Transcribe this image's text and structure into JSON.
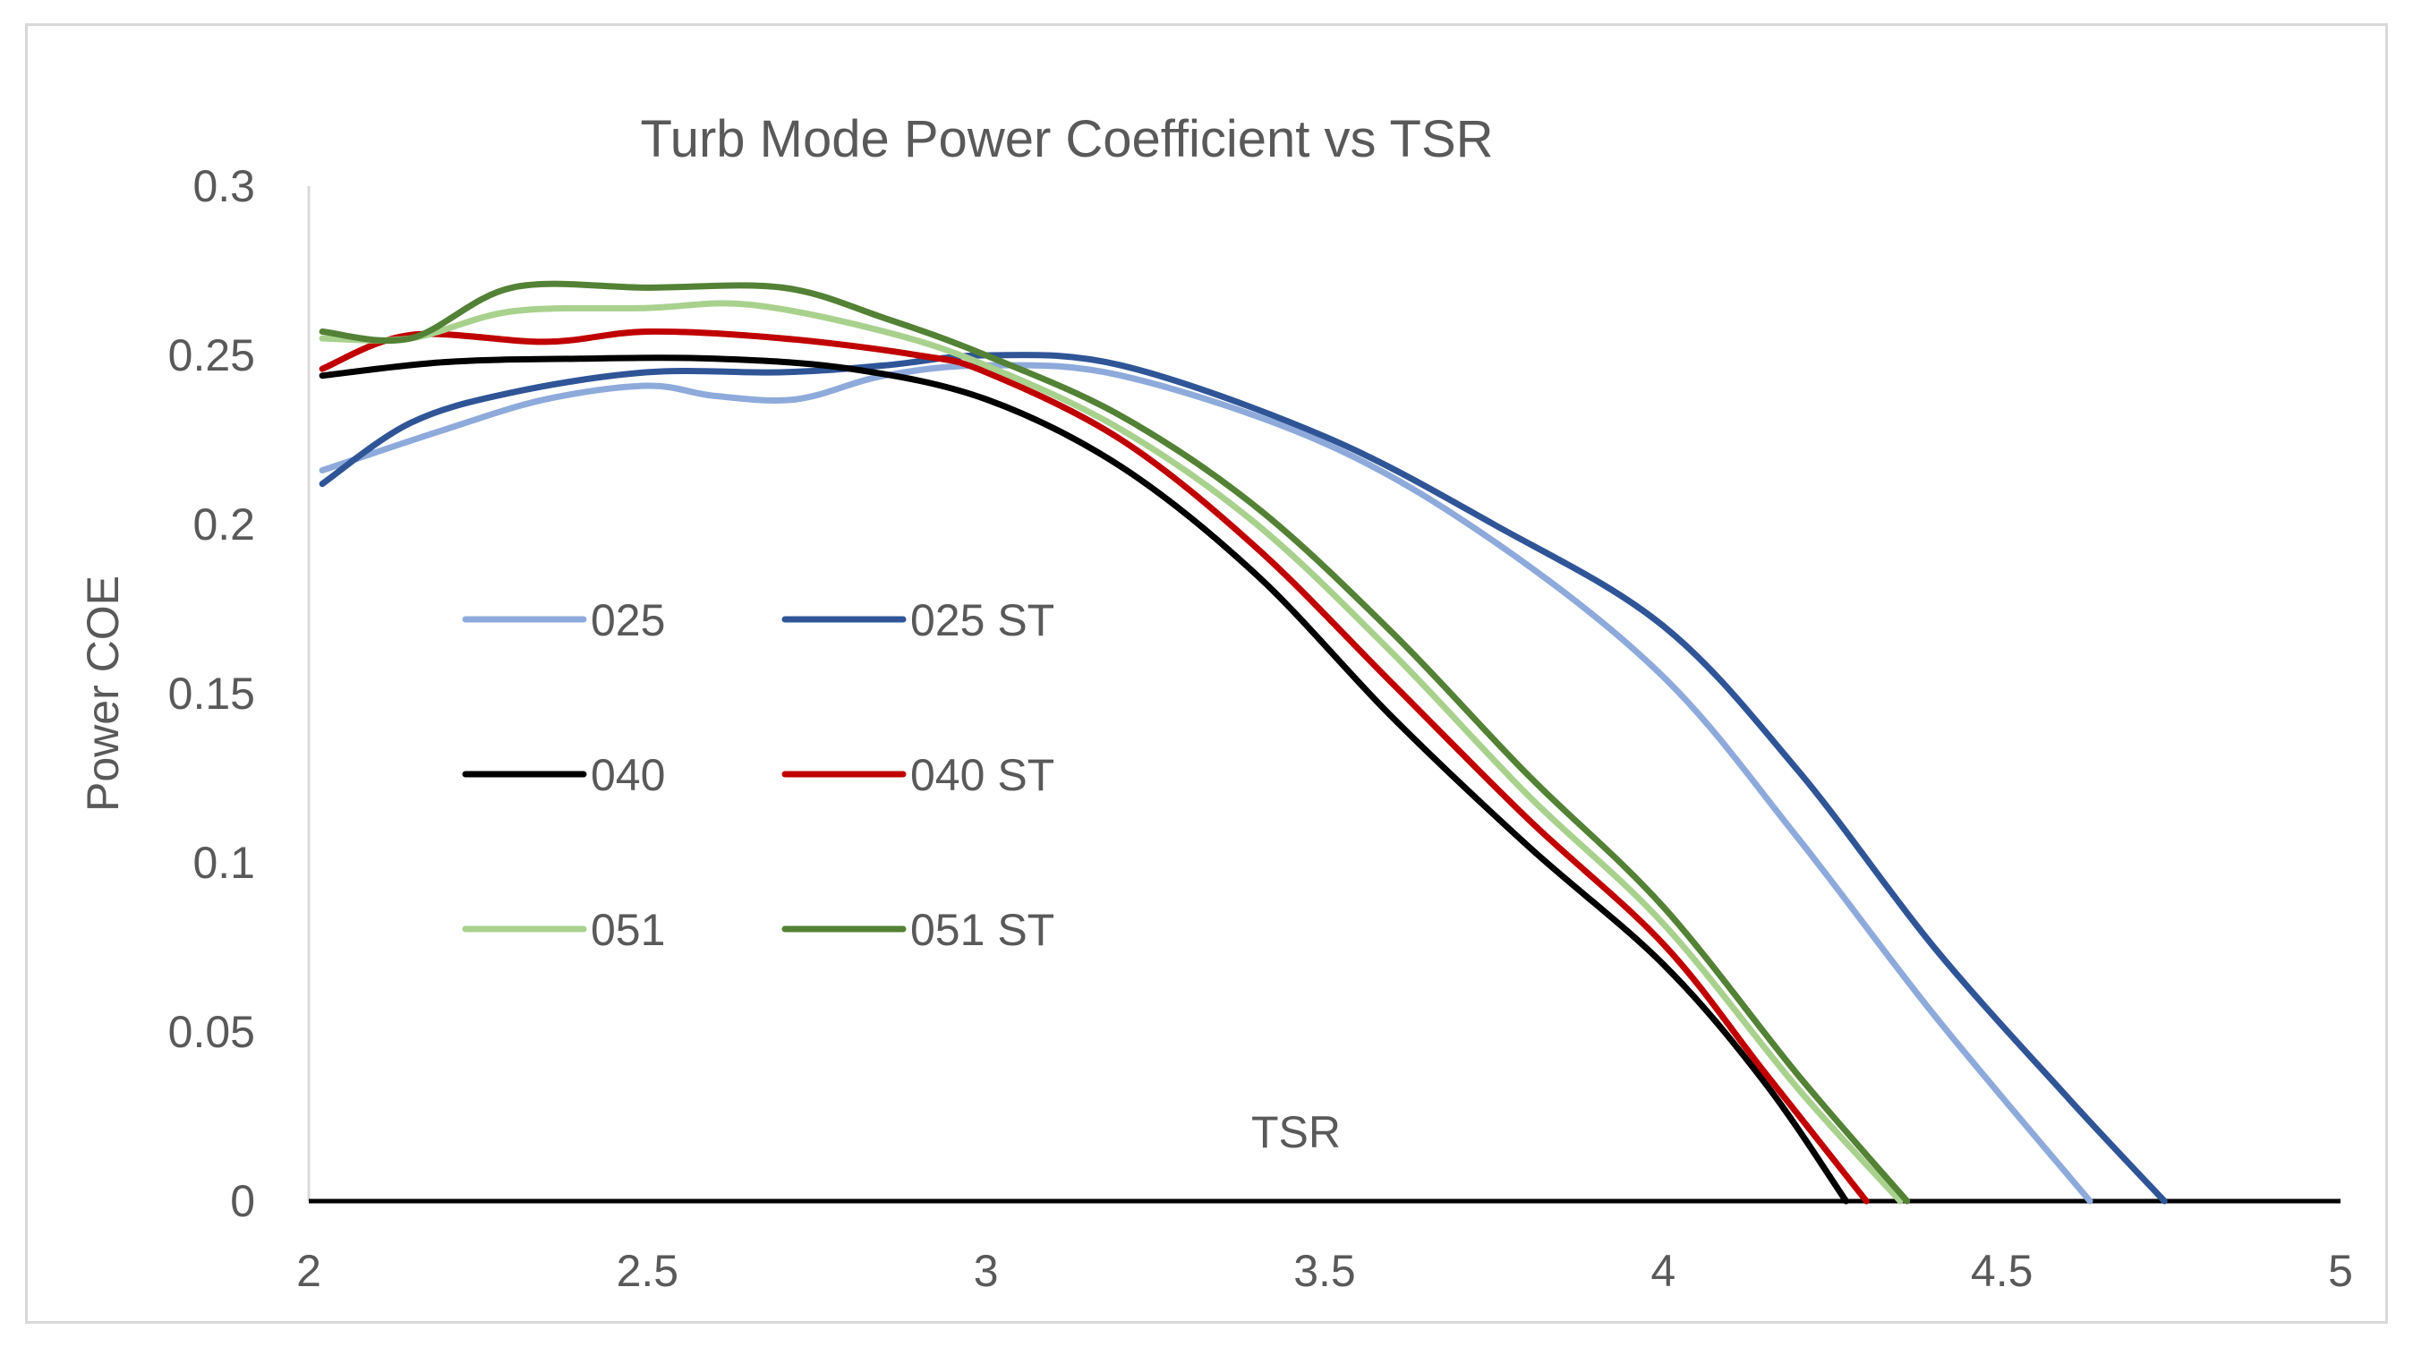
{
  "chart_data": {
    "type": "line",
    "title": "Turb  Mode Power Coefficient vs TSR",
    "xlabel": "TSR",
    "ylabel": "Power COE",
    "xlim": [
      2,
      5
    ],
    "ylim": [
      0,
      0.3
    ],
    "x_ticks": [
      "2",
      "2.5",
      "3",
      "3.5",
      "4",
      "4.5",
      "5"
    ],
    "y_ticks": [
      "0",
      "0.05",
      "0.1",
      "0.15",
      "0.2",
      "0.25",
      "0.3"
    ],
    "legend_position": "center-left",
    "grid": false,
    "series": [
      {
        "name": "025",
        "color": "#8eaadb",
        "points": [
          [
            2.02,
            0.216
          ],
          [
            2.2,
            0.228
          ],
          [
            2.35,
            0.237
          ],
          [
            2.5,
            0.241
          ],
          [
            2.6,
            0.238
          ],
          [
            2.72,
            0.237
          ],
          [
            2.85,
            0.244
          ],
          [
            3.0,
            0.247
          ],
          [
            3.2,
            0.244
          ],
          [
            3.5,
            0.224
          ],
          [
            3.75,
            0.195
          ],
          [
            4.0,
            0.155
          ],
          [
            4.2,
            0.107
          ],
          [
            4.4,
            0.055
          ],
          [
            4.63,
            0.0
          ]
        ]
      },
      {
        "name": "025 ST",
        "color": "#2f5597",
        "points": [
          [
            2.02,
            0.212
          ],
          [
            2.15,
            0.23
          ],
          [
            2.3,
            0.239
          ],
          [
            2.5,
            0.245
          ],
          [
            2.7,
            0.245
          ],
          [
            2.85,
            0.247
          ],
          [
            3.0,
            0.25
          ],
          [
            3.2,
            0.247
          ],
          [
            3.5,
            0.226
          ],
          [
            3.75,
            0.2
          ],
          [
            4.0,
            0.17
          ],
          [
            4.2,
            0.127
          ],
          [
            4.4,
            0.075
          ],
          [
            4.6,
            0.03
          ],
          [
            4.74,
            0.0
          ]
        ]
      },
      {
        "name": "040",
        "color": "#000000",
        "points": [
          [
            2.02,
            0.244
          ],
          [
            2.2,
            0.248
          ],
          [
            2.4,
            0.249
          ],
          [
            2.6,
            0.249
          ],
          [
            2.8,
            0.246
          ],
          [
            3.0,
            0.237
          ],
          [
            3.2,
            0.217
          ],
          [
            3.4,
            0.185
          ],
          [
            3.6,
            0.143
          ],
          [
            3.8,
            0.105
          ],
          [
            4.0,
            0.07
          ],
          [
            4.15,
            0.035
          ],
          [
            4.27,
            0.0
          ]
        ]
      },
      {
        "name": "040 ST",
        "color": "#c00000",
        "points": [
          [
            2.02,
            0.246
          ],
          [
            2.15,
            0.256
          ],
          [
            2.35,
            0.254
          ],
          [
            2.5,
            0.257
          ],
          [
            2.7,
            0.255
          ],
          [
            2.9,
            0.25
          ],
          [
            3.0,
            0.245
          ],
          [
            3.2,
            0.225
          ],
          [
            3.4,
            0.193
          ],
          [
            3.6,
            0.153
          ],
          [
            3.8,
            0.113
          ],
          [
            4.0,
            0.076
          ],
          [
            4.15,
            0.038
          ],
          [
            4.3,
            0.0
          ]
        ]
      },
      {
        "name": "051",
        "color": "#a9d18e",
        "points": [
          [
            2.02,
            0.255
          ],
          [
            2.15,
            0.255
          ],
          [
            2.3,
            0.263
          ],
          [
            2.5,
            0.264
          ],
          [
            2.65,
            0.265
          ],
          [
            2.85,
            0.257
          ],
          [
            3.0,
            0.247
          ],
          [
            3.2,
            0.228
          ],
          [
            3.4,
            0.2
          ],
          [
            3.6,
            0.162
          ],
          [
            3.8,
            0.12
          ],
          [
            4.0,
            0.082
          ],
          [
            4.2,
            0.033
          ],
          [
            4.35,
            0.0
          ]
        ]
      },
      {
        "name": "051 ST",
        "color": "#538135",
        "points": [
          [
            2.02,
            0.257
          ],
          [
            2.15,
            0.255
          ],
          [
            2.3,
            0.27
          ],
          [
            2.5,
            0.27
          ],
          [
            2.7,
            0.27
          ],
          [
            2.85,
            0.261
          ],
          [
            3.0,
            0.25
          ],
          [
            3.2,
            0.232
          ],
          [
            3.4,
            0.205
          ],
          [
            3.6,
            0.168
          ],
          [
            3.8,
            0.126
          ],
          [
            4.0,
            0.087
          ],
          [
            4.2,
            0.037
          ],
          [
            4.36,
            0.0
          ]
        ]
      }
    ]
  }
}
